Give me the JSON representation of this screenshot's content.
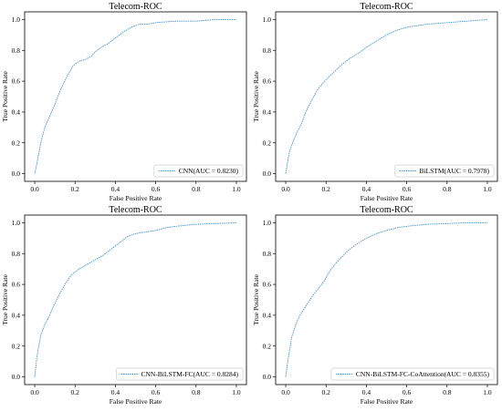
{
  "colors": {
    "roc_line": "#4b96cc",
    "axes": "#000000",
    "legend_border": "#d0d0d0"
  },
  "chart_data": [
    {
      "type": "line",
      "title": "Telecom-ROC",
      "xlabel": "False Positive Rate",
      "ylabel": "True Positive Rate",
      "xlim": [
        -0.05,
        1.05
      ],
      "ylim": [
        -0.05,
        1.05
      ],
      "xticks": [
        "0.0",
        "0.2",
        "0.4",
        "0.6",
        "0.8",
        "1.0"
      ],
      "yticks": [
        "0.0",
        "0.2",
        "0.4",
        "0.6",
        "0.8",
        "1.0"
      ],
      "grid": false,
      "legend_position": "lower right",
      "series": [
        {
          "name": "CNN(AUC = 0.8230)",
          "x": [
            0,
            0.01,
            0.02,
            0.03,
            0.05,
            0.07,
            0.1,
            0.13,
            0.16,
            0.19,
            0.22,
            0.25,
            0.28,
            0.3,
            0.33,
            0.36,
            0.4,
            0.44,
            0.48,
            0.52,
            0.56,
            0.6,
            0.65,
            0.7,
            0.8,
            0.9,
            1.0
          ],
          "y": [
            0,
            0.06,
            0.13,
            0.2,
            0.3,
            0.36,
            0.45,
            0.55,
            0.63,
            0.7,
            0.73,
            0.74,
            0.76,
            0.79,
            0.82,
            0.84,
            0.88,
            0.92,
            0.95,
            0.97,
            0.97,
            0.98,
            0.985,
            0.99,
            0.99,
            1.0,
            1.0
          ]
        }
      ]
    },
    {
      "type": "line",
      "title": "Telecom-ROC",
      "xlabel": "False Positive Rate",
      "ylabel": "True Positive Rate",
      "xlim": [
        -0.05,
        1.05
      ],
      "ylim": [
        -0.05,
        1.05
      ],
      "xticks": [
        "0.0",
        "0.2",
        "0.4",
        "0.6",
        "0.8",
        "1.0"
      ],
      "yticks": [
        "0.0",
        "0.2",
        "0.4",
        "0.6",
        "0.8",
        "1.0"
      ],
      "grid": false,
      "legend_position": "lower right",
      "series": [
        {
          "name": "BiLSTM(AUC = 0.7978)",
          "x": [
            0,
            0.01,
            0.02,
            0.04,
            0.06,
            0.08,
            0.1,
            0.13,
            0.16,
            0.2,
            0.24,
            0.28,
            0.32,
            0.36,
            0.4,
            0.45,
            0.5,
            0.55,
            0.6,
            0.65,
            0.7,
            0.8,
            0.9,
            1.0
          ],
          "y": [
            0,
            0.08,
            0.15,
            0.22,
            0.28,
            0.33,
            0.4,
            0.48,
            0.55,
            0.61,
            0.66,
            0.71,
            0.75,
            0.78,
            0.82,
            0.86,
            0.9,
            0.93,
            0.95,
            0.96,
            0.97,
            0.98,
            0.99,
            1.0
          ]
        }
      ]
    },
    {
      "type": "line",
      "title": "Telecom-ROC",
      "xlabel": "False Positive Rate",
      "ylabel": "True Positive Rate",
      "xlim": [
        -0.05,
        1.05
      ],
      "ylim": [
        -0.05,
        1.05
      ],
      "xticks": [
        "0.0",
        "0.2",
        "0.4",
        "0.6",
        "0.8",
        "1.0"
      ],
      "yticks": [
        "0.0",
        "0.2",
        "0.4",
        "0.6",
        "0.8",
        "1.0"
      ],
      "grid": false,
      "legend_position": "lower right",
      "series": [
        {
          "name": "CNN-BiLSTM-FC(AUC = 0.8284)",
          "x": [
            0,
            0.01,
            0.02,
            0.03,
            0.05,
            0.07,
            0.09,
            0.12,
            0.15,
            0.18,
            0.22,
            0.26,
            0.3,
            0.34,
            0.38,
            0.42,
            0.46,
            0.5,
            0.55,
            0.6,
            0.66,
            0.72,
            0.8,
            0.9,
            1.0
          ],
          "y": [
            0,
            0.12,
            0.2,
            0.27,
            0.34,
            0.39,
            0.45,
            0.53,
            0.6,
            0.66,
            0.7,
            0.73,
            0.76,
            0.79,
            0.83,
            0.87,
            0.91,
            0.93,
            0.94,
            0.95,
            0.97,
            0.98,
            0.99,
            0.995,
            1.0
          ]
        }
      ]
    },
    {
      "type": "line",
      "title": "Telecom-ROC",
      "xlabel": "False Positive Rate",
      "ylabel": "True Positive Rate",
      "xlim": [
        -0.05,
        1.05
      ],
      "ylim": [
        -0.05,
        1.05
      ],
      "xticks": [
        "0.0",
        "0.2",
        "0.4",
        "0.6",
        "0.8",
        "1.0"
      ],
      "yticks": [
        "0.0",
        "0.2",
        "0.4",
        "0.6",
        "0.8",
        "1.0"
      ],
      "grid": false,
      "legend_position": "lower right",
      "series": [
        {
          "name": "CNN-BiLSTM-FC-CoAttention(AUC = 0.8355)",
          "x": [
            0,
            0.01,
            0.02,
            0.03,
            0.05,
            0.07,
            0.1,
            0.13,
            0.16,
            0.19,
            0.22,
            0.25,
            0.28,
            0.31,
            0.35,
            0.4,
            0.45,
            0.5,
            0.56,
            0.62,
            0.7,
            0.8,
            0.9,
            1.0
          ],
          "y": [
            0,
            0.1,
            0.18,
            0.26,
            0.34,
            0.4,
            0.46,
            0.52,
            0.57,
            0.62,
            0.69,
            0.74,
            0.78,
            0.82,
            0.86,
            0.9,
            0.93,
            0.95,
            0.97,
            0.98,
            0.99,
            0.995,
            1.0,
            1.0
          ]
        }
      ]
    }
  ]
}
